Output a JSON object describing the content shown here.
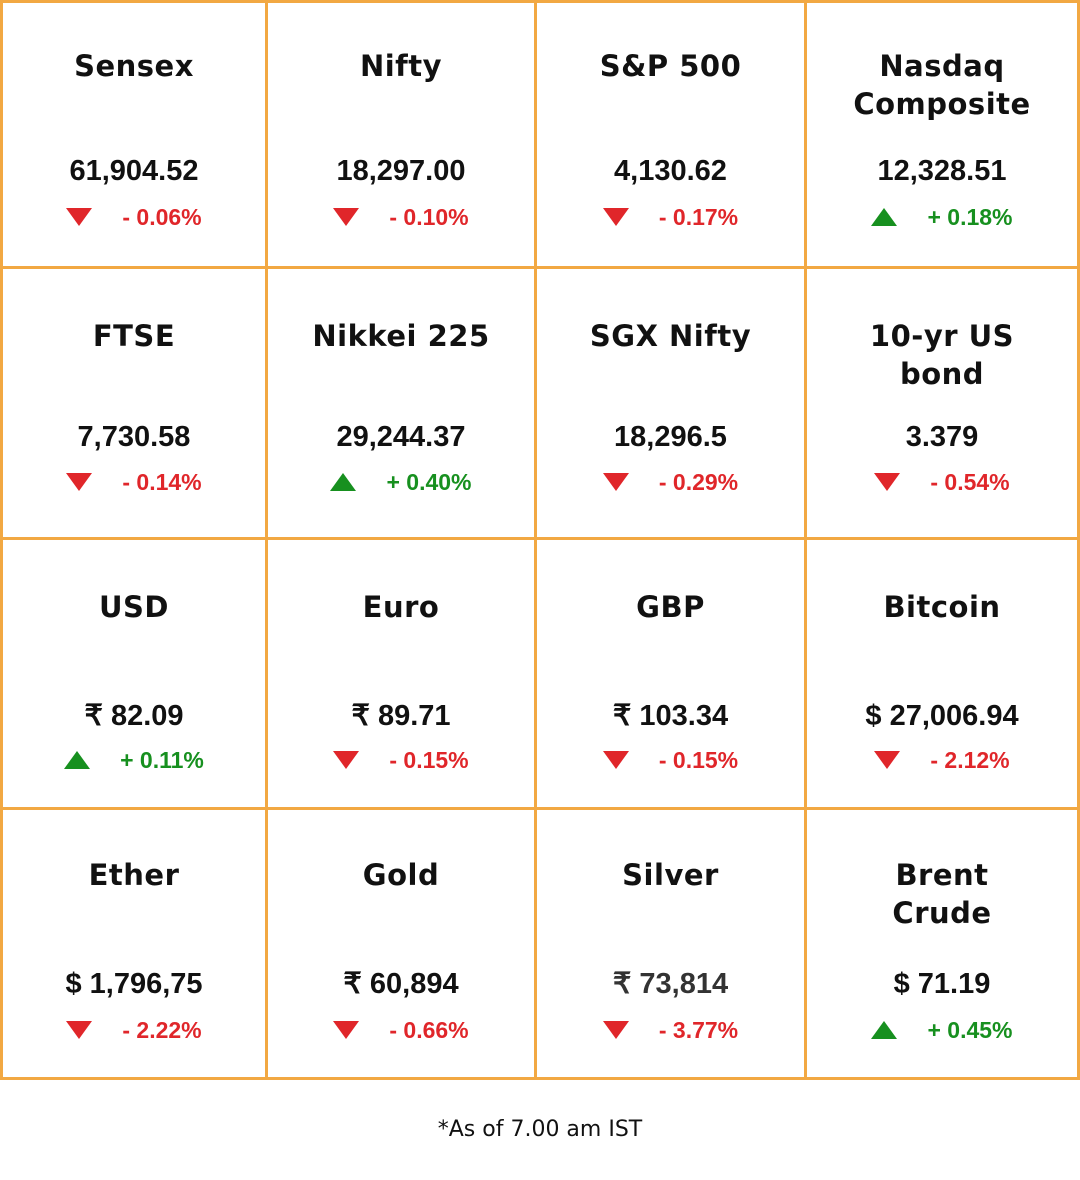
{
  "markets": [
    {
      "name": "Sensex",
      "value": "61,904.52",
      "change": "- 0.06%",
      "direction": "down"
    },
    {
      "name": "Nifty",
      "value": "18,297.00",
      "change": "- 0.10%",
      "direction": "down"
    },
    {
      "name": "S&P 500",
      "value": "4,130.62",
      "change": "- 0.17%",
      "direction": "down"
    },
    {
      "name": "Nasdaq Composite",
      "value": "12,328.51",
      "change": "+ 0.18%",
      "direction": "up"
    },
    {
      "name": "FTSE",
      "value": "7,730.58",
      "change": "- 0.14%",
      "direction": "down"
    },
    {
      "name": "Nikkei 225",
      "value": "29,244.37",
      "change": "+ 0.40%",
      "direction": "up"
    },
    {
      "name": "SGX Nifty",
      "value": "18,296.5",
      "change": "- 0.29%",
      "direction": "down"
    },
    {
      "name": "10-yr US bond",
      "value": "3.379",
      "change": "- 0.54%",
      "direction": "down"
    },
    {
      "name": "USD",
      "value": "₹ 82.09",
      "change": "+ 0.11%",
      "direction": "up"
    },
    {
      "name": "Euro",
      "value": "₹ 89.71",
      "change": "- 0.15%",
      "direction": "down"
    },
    {
      "name": "GBP",
      "value": "₹ 103.34",
      "change": "- 0.15%",
      "direction": "down"
    },
    {
      "name": "Bitcoin",
      "value": "$ 27,006.94",
      "change": "- 2.12%",
      "direction": "down"
    },
    {
      "name": "Ether",
      "value": "$ 1,796,75",
      "change": "- 2.22%",
      "direction": "down"
    },
    {
      "name": "Gold",
      "value": "₹ 60,894",
      "change": "- 0.66%",
      "direction": "down"
    },
    {
      "name": "Silver",
      "value": "₹ 73,814",
      "change": "- 3.77%",
      "direction": "down"
    },
    {
      "name": "Brent Crude",
      "value": "$ 71.19",
      "change": "+ 0.45%",
      "direction": "up"
    }
  ],
  "footnote": "*As of 7.00 am IST",
  "colors": {
    "border": "#f2a842",
    "down": "#e0262a",
    "up": "#17901f",
    "text": "#111111"
  }
}
